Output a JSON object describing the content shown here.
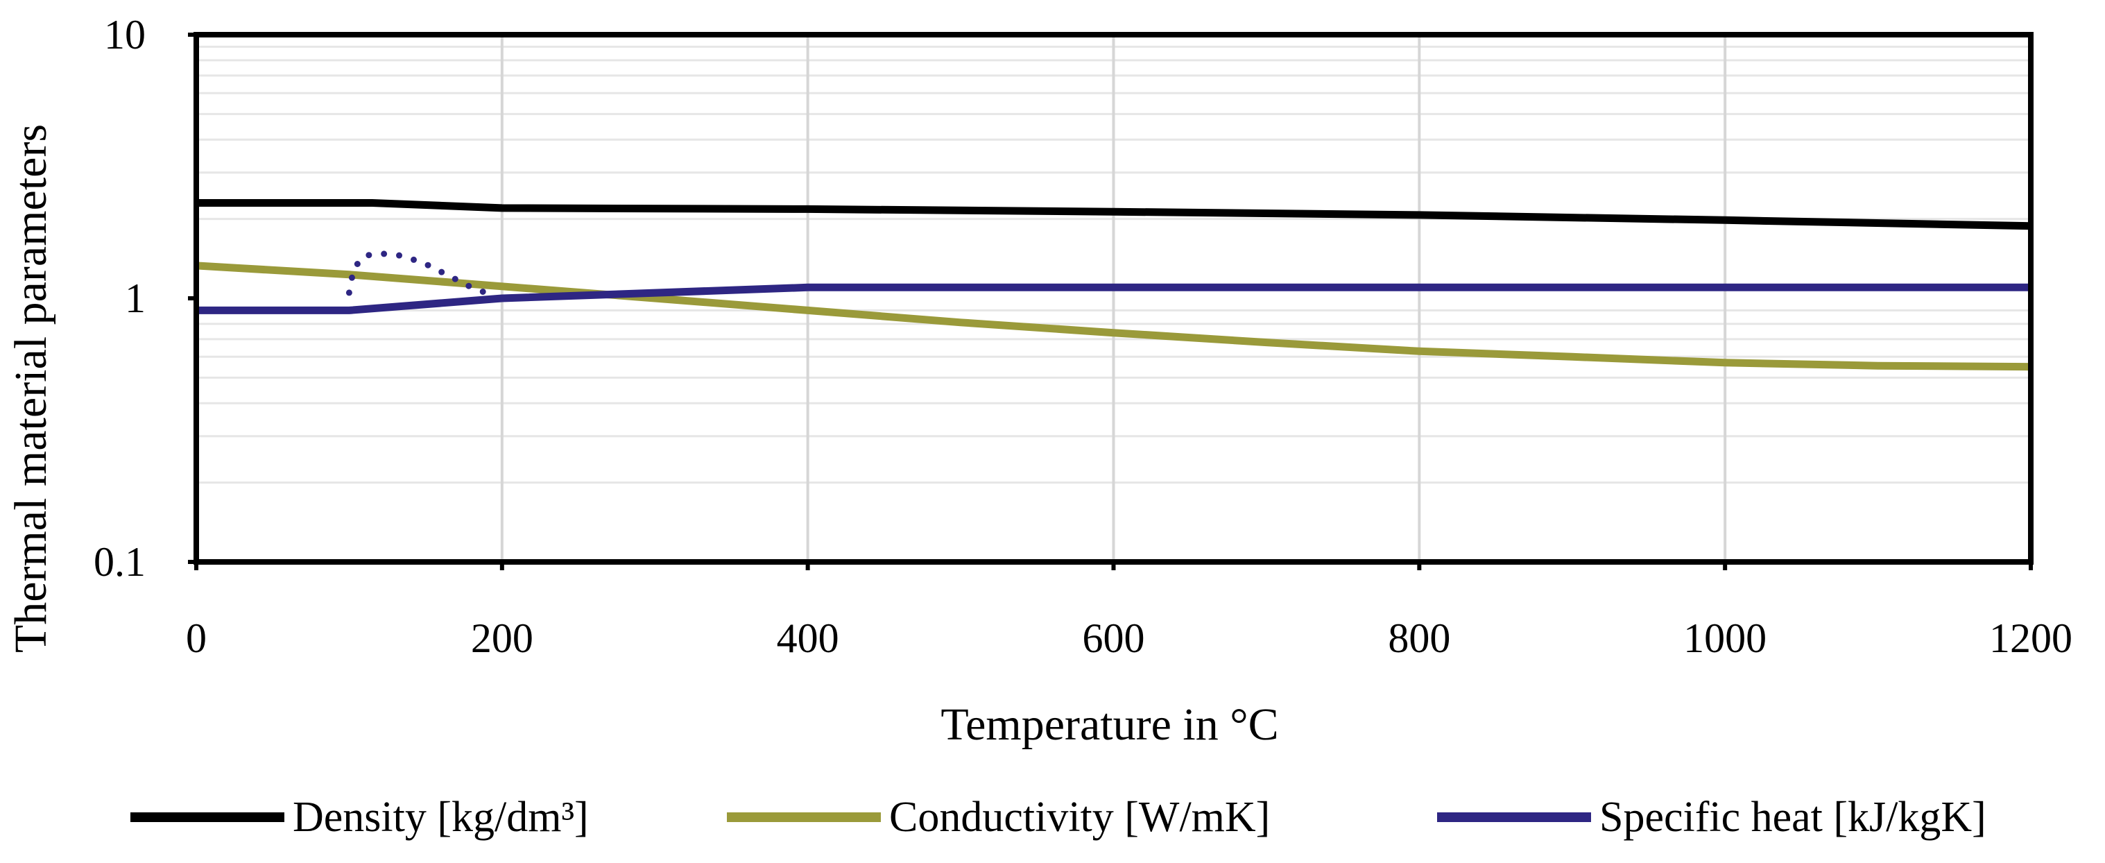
{
  "chart_data": {
    "type": "line",
    "title": "",
    "xlabel": "Temperature in °C",
    "ylabel": "Thermal material parameters",
    "xlim": [
      0,
      1200
    ],
    "ylim": [
      0.1,
      10
    ],
    "yscale": "log",
    "grid": true,
    "x_ticks": [
      "0",
      "200",
      "400",
      "600",
      "800",
      "1000",
      "1200"
    ],
    "y_ticks": [
      "0.1",
      "1",
      "10"
    ],
    "legend_position": "bottom",
    "series": [
      {
        "name": "Density [kg/dm³]",
        "color": "#000000",
        "x": [
          0,
          100,
          115,
          200,
          400,
          600,
          800,
          1000,
          1200
        ],
        "y": [
          2.3,
          2.3,
          2.3,
          2.2,
          2.18,
          2.13,
          2.07,
          1.98,
          1.88
        ]
      },
      {
        "name": "Conductivity [W/mK]",
        "color": "#9a9a3a",
        "x": [
          0,
          100,
          200,
          300,
          400,
          500,
          600,
          700,
          800,
          900,
          1000,
          1100,
          1200
        ],
        "y": [
          1.33,
          1.23,
          1.11,
          1.0,
          0.9,
          0.81,
          0.74,
          0.68,
          0.63,
          0.6,
          0.57,
          0.555,
          0.55
        ]
      },
      {
        "name": "Specific heat [kJ/kgK]",
        "color": "#2e2683",
        "x": [
          0,
          100,
          200,
          400,
          600,
          800,
          1000,
          1200
        ],
        "y": [
          0.9,
          0.9,
          1.0,
          1.1,
          1.1,
          1.1,
          1.1,
          1.1
        ]
      }
    ],
    "annotations": [
      {
        "type": "dotted-curve",
        "color": "#2e2683",
        "x": [
          100,
          103,
          110,
          120,
          135,
          150,
          165,
          180,
          195
        ],
        "y": [
          1.05,
          1.3,
          1.45,
          1.48,
          1.45,
          1.35,
          1.22,
          1.1,
          1.02
        ]
      }
    ]
  }
}
